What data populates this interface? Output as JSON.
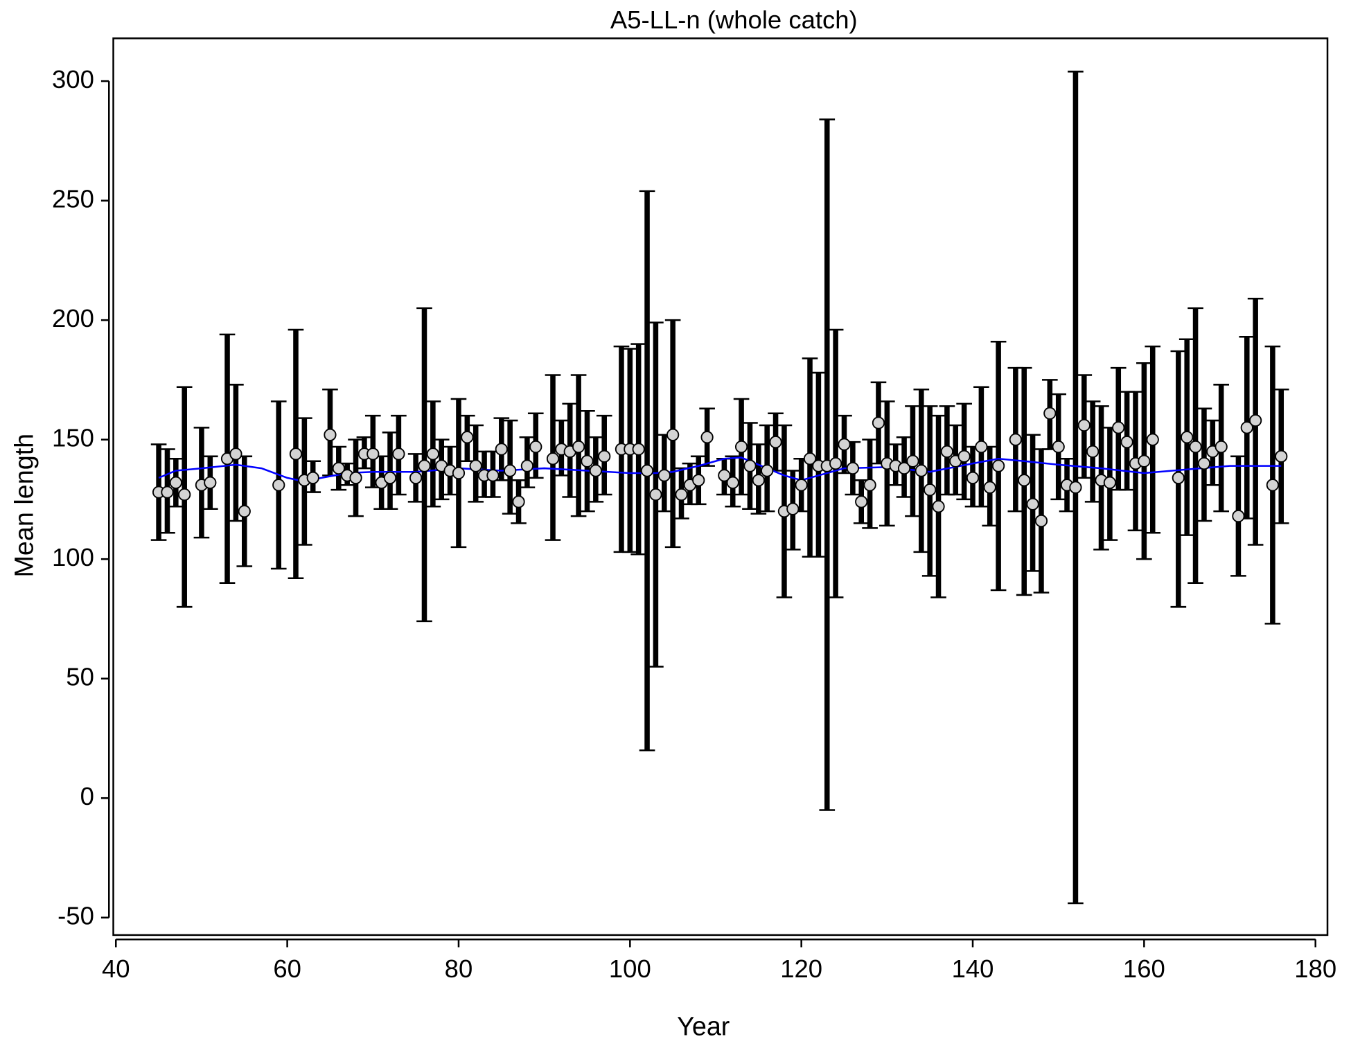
{
  "chart_data": {
    "type": "errorbar",
    "title": "A5-LL-n (whole catch)",
    "x_label": "Year",
    "y_label": "Mean length",
    "x": [
      45,
      46,
      47,
      48,
      50,
      51,
      53,
      54,
      55,
      59,
      61,
      62,
      63,
      65,
      66,
      67,
      68,
      69,
      70,
      71,
      72,
      73,
      75,
      76,
      77,
      78,
      79,
      80,
      81,
      82,
      83,
      84,
      85,
      86,
      87,
      88,
      89,
      91,
      92,
      93,
      94,
      95,
      96,
      97,
      99,
      100,
      101,
      102,
      103,
      104,
      105,
      106,
      107,
      108,
      109,
      111,
      112,
      113,
      114,
      115,
      116,
      117,
      118,
      119,
      120,
      121,
      122,
      123,
      124,
      125,
      126,
      127,
      128,
      129,
      130,
      131,
      132,
      133,
      134,
      135,
      136,
      137,
      138,
      139,
      140,
      141,
      142,
      143,
      145,
      146,
      147,
      148,
      149,
      150,
      151,
      152,
      153,
      154,
      155,
      156,
      157,
      158,
      159,
      160,
      161,
      164,
      165,
      166,
      167,
      168,
      169,
      171,
      172,
      173,
      175,
      176
    ],
    "values": [
      128,
      128,
      132,
      127,
      131,
      132,
      142,
      144,
      120,
      131,
      144,
      133,
      134,
      152,
      138,
      135,
      134,
      144,
      144,
      132,
      134,
      144,
      134,
      139,
      144,
      139,
      137,
      136,
      151,
      139,
      135,
      135,
      146,
      137,
      124,
      139,
      147,
      142,
      146,
      145,
      147,
      141,
      137,
      143,
      146,
      146,
      146,
      137,
      127,
      135,
      152,
      127,
      131,
      133,
      151,
      135,
      132,
      147,
      139,
      133,
      137,
      149,
      120,
      121,
      131,
      142,
      139,
      139,
      140,
      148,
      138,
      124,
      131,
      157,
      140,
      139,
      138,
      141,
      137,
      129,
      122,
      145,
      141,
      143,
      134,
      147,
      130,
      139,
      150,
      133,
      123,
      116,
      161,
      147,
      131,
      130,
      156,
      145,
      133,
      132,
      155,
      149,
      140,
      141,
      150,
      134,
      151,
      147,
      140,
      145,
      147,
      118,
      155,
      158,
      131,
      143
    ],
    "lower": [
      108,
      111,
      122,
      80,
      109,
      121,
      90,
      116,
      97,
      96,
      92,
      106,
      128,
      135,
      129,
      131,
      118,
      138,
      130,
      121,
      121,
      127,
      124,
      74,
      122,
      125,
      127,
      105,
      141,
      124,
      126,
      126,
      133,
      119,
      115,
      130,
      134,
      108,
      135,
      126,
      118,
      120,
      124,
      127,
      103,
      103,
      102,
      20,
      55,
      120,
      105,
      117,
      123,
      123,
      139,
      127,
      122,
      127,
      121,
      119,
      120,
      137,
      84,
      104,
      120,
      101,
      101,
      -5,
      84,
      136,
      127,
      115,
      113,
      140,
      114,
      131,
      126,
      118,
      103,
      93,
      84,
      127,
      127,
      125,
      122,
      122,
      114,
      87,
      120,
      85,
      95,
      86,
      146,
      125,
      120,
      -44,
      134,
      124,
      104,
      108,
      129,
      129,
      112,
      100,
      111,
      80,
      110,
      90,
      116,
      131,
      120,
      93,
      117,
      106,
      73,
      115
    ],
    "upper": [
      148,
      146,
      142,
      172,
      155,
      143,
      194,
      173,
      143,
      166,
      196,
      159,
      141,
      171,
      147,
      140,
      150,
      151,
      160,
      143,
      153,
      160,
      144,
      205,
      166,
      150,
      147,
      167,
      160,
      156,
      145,
      145,
      159,
      158,
      133,
      151,
      161,
      177,
      158,
      165,
      177,
      162,
      151,
      160,
      189,
      188,
      190,
      254,
      199,
      152,
      200,
      138,
      140,
      143,
      163,
      142,
      143,
      167,
      157,
      148,
      156,
      161,
      156,
      137,
      142,
      184,
      178,
      284,
      196,
      160,
      149,
      133,
      150,
      174,
      166,
      148,
      151,
      164,
      171,
      164,
      160,
      164,
      156,
      165,
      147,
      172,
      147,
      191,
      180,
      180,
      152,
      146,
      175,
      169,
      142,
      304,
      177,
      166,
      164,
      155,
      180,
      170,
      170,
      182,
      189,
      187,
      192,
      205,
      163,
      158,
      173,
      143,
      193,
      209,
      189,
      171
    ],
    "point_color": "#d3d3d3",
    "bar_color": "#000000",
    "smooth": {
      "color": "#0000ff",
      "x": [
        45,
        47,
        50,
        54,
        57,
        60,
        62,
        64,
        67,
        70,
        75,
        80,
        85,
        90,
        95,
        100,
        103,
        105,
        108,
        111,
        113,
        116,
        118,
        120,
        122,
        125,
        130,
        135,
        140,
        143,
        146,
        150,
        155,
        160,
        165,
        170,
        176
      ],
      "values": [
        134,
        137,
        138,
        139.5,
        138,
        134,
        132.5,
        134,
        136,
        136.5,
        136.5,
        138,
        137,
        138,
        137,
        136,
        136,
        136.5,
        139,
        142,
        142.5,
        138,
        135,
        133,
        135,
        138,
        138.5,
        136.5,
        140,
        142,
        141,
        139.5,
        138,
        136,
        137.5,
        139,
        139
      ]
    },
    "xlim": [
      39.7,
      181.4
    ],
    "ylim": [
      -57.3,
      317.9
    ],
    "xticks": [
      40,
      60,
      80,
      100,
      120,
      140,
      160,
      180
    ],
    "yticks": [
      -50,
      0,
      50,
      100,
      150,
      200,
      250,
      300
    ]
  }
}
